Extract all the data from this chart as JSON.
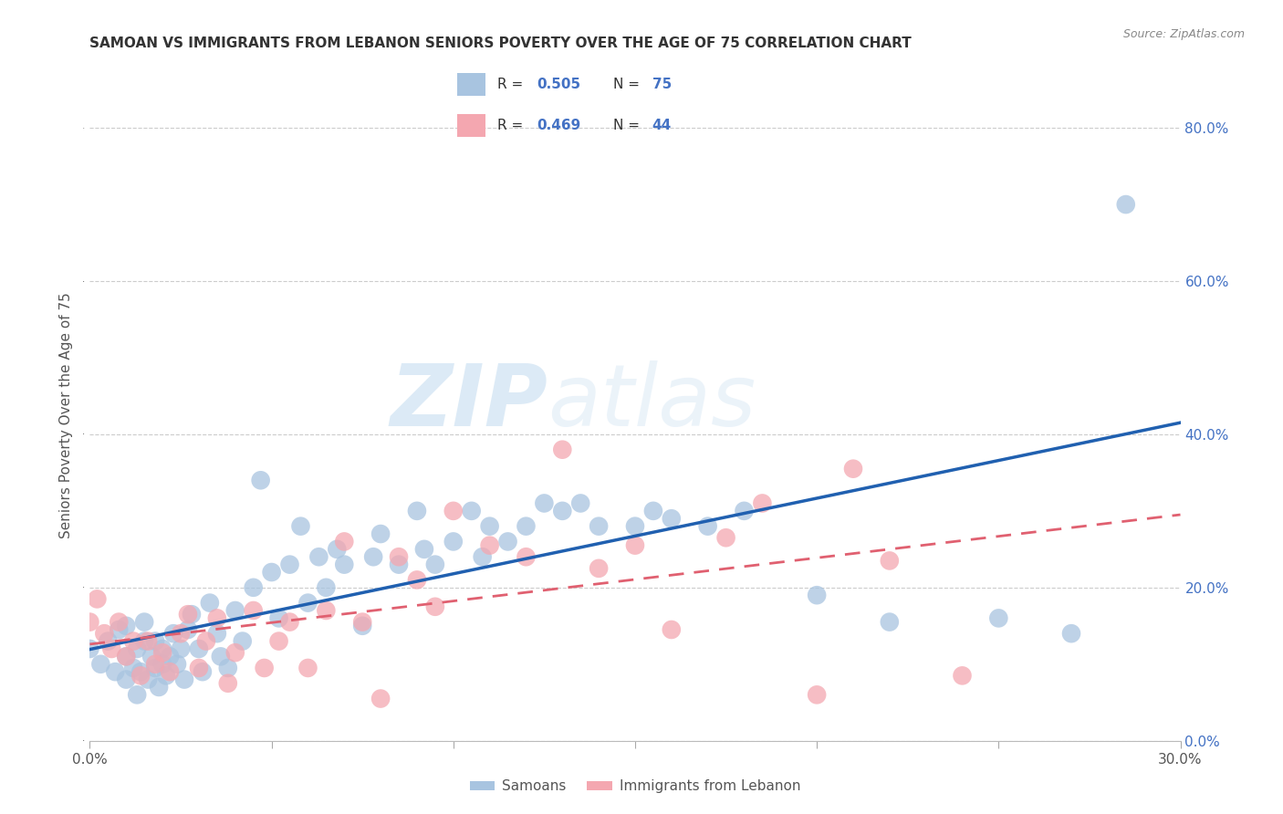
{
  "title": "SAMOAN VS IMMIGRANTS FROM LEBANON SENIORS POVERTY OVER THE AGE OF 75 CORRELATION CHART",
  "source": "Source: ZipAtlas.com",
  "ylabel": "Seniors Poverty Over the Age of 75",
  "xlim": [
    0.0,
    0.3
  ],
  "ylim": [
    0.0,
    0.85
  ],
  "xticks": [
    0.0,
    0.05,
    0.1,
    0.15,
    0.2,
    0.25,
    0.3
  ],
  "yticks": [
    0.0,
    0.2,
    0.4,
    0.6,
    0.8
  ],
  "R_samoan": 0.505,
  "N_samoan": 75,
  "R_lebanon": 0.469,
  "N_lebanon": 44,
  "color_samoan": "#a8c4e0",
  "color_lebanon": "#f4a7b0",
  "line_color_samoan": "#2060b0",
  "line_color_lebanon": "#e06070",
  "watermark_zip": "ZIP",
  "watermark_atlas": "atlas",
  "samoan_x": [
    0.0,
    0.003,
    0.005,
    0.007,
    0.008,
    0.01,
    0.01,
    0.01,
    0.012,
    0.013,
    0.013,
    0.014,
    0.015,
    0.015,
    0.016,
    0.017,
    0.018,
    0.018,
    0.019,
    0.02,
    0.02,
    0.021,
    0.022,
    0.023,
    0.024,
    0.025,
    0.026,
    0.027,
    0.028,
    0.03,
    0.031,
    0.033,
    0.035,
    0.036,
    0.038,
    0.04,
    0.042,
    0.045,
    0.047,
    0.05,
    0.052,
    0.055,
    0.058,
    0.06,
    0.063,
    0.065,
    0.068,
    0.07,
    0.075,
    0.078,
    0.08,
    0.085,
    0.09,
    0.092,
    0.095,
    0.1,
    0.105,
    0.108,
    0.11,
    0.115,
    0.12,
    0.125,
    0.13,
    0.135,
    0.14,
    0.15,
    0.155,
    0.16,
    0.17,
    0.18,
    0.2,
    0.22,
    0.25,
    0.27,
    0.285
  ],
  "samoan_y": [
    0.12,
    0.1,
    0.13,
    0.09,
    0.145,
    0.08,
    0.11,
    0.15,
    0.095,
    0.12,
    0.06,
    0.09,
    0.13,
    0.155,
    0.08,
    0.11,
    0.095,
    0.13,
    0.07,
    0.1,
    0.12,
    0.085,
    0.11,
    0.14,
    0.1,
    0.12,
    0.08,
    0.145,
    0.165,
    0.12,
    0.09,
    0.18,
    0.14,
    0.11,
    0.095,
    0.17,
    0.13,
    0.2,
    0.34,
    0.22,
    0.16,
    0.23,
    0.28,
    0.18,
    0.24,
    0.2,
    0.25,
    0.23,
    0.15,
    0.24,
    0.27,
    0.23,
    0.3,
    0.25,
    0.23,
    0.26,
    0.3,
    0.24,
    0.28,
    0.26,
    0.28,
    0.31,
    0.3,
    0.31,
    0.28,
    0.28,
    0.3,
    0.29,
    0.28,
    0.3,
    0.19,
    0.155,
    0.16,
    0.14,
    0.7
  ],
  "lebanon_x": [
    0.0,
    0.002,
    0.004,
    0.006,
    0.008,
    0.01,
    0.012,
    0.014,
    0.016,
    0.018,
    0.02,
    0.022,
    0.025,
    0.027,
    0.03,
    0.032,
    0.035,
    0.038,
    0.04,
    0.045,
    0.048,
    0.052,
    0.055,
    0.06,
    0.065,
    0.07,
    0.075,
    0.08,
    0.085,
    0.09,
    0.095,
    0.1,
    0.11,
    0.12,
    0.13,
    0.14,
    0.15,
    0.16,
    0.175,
    0.185,
    0.2,
    0.21,
    0.22,
    0.24
  ],
  "lebanon_y": [
    0.155,
    0.185,
    0.14,
    0.12,
    0.155,
    0.11,
    0.13,
    0.085,
    0.13,
    0.1,
    0.115,
    0.09,
    0.14,
    0.165,
    0.095,
    0.13,
    0.16,
    0.075,
    0.115,
    0.17,
    0.095,
    0.13,
    0.155,
    0.095,
    0.17,
    0.26,
    0.155,
    0.055,
    0.24,
    0.21,
    0.175,
    0.3,
    0.255,
    0.24,
    0.38,
    0.225,
    0.255,
    0.145,
    0.265,
    0.31,
    0.06,
    0.355,
    0.235,
    0.085
  ]
}
